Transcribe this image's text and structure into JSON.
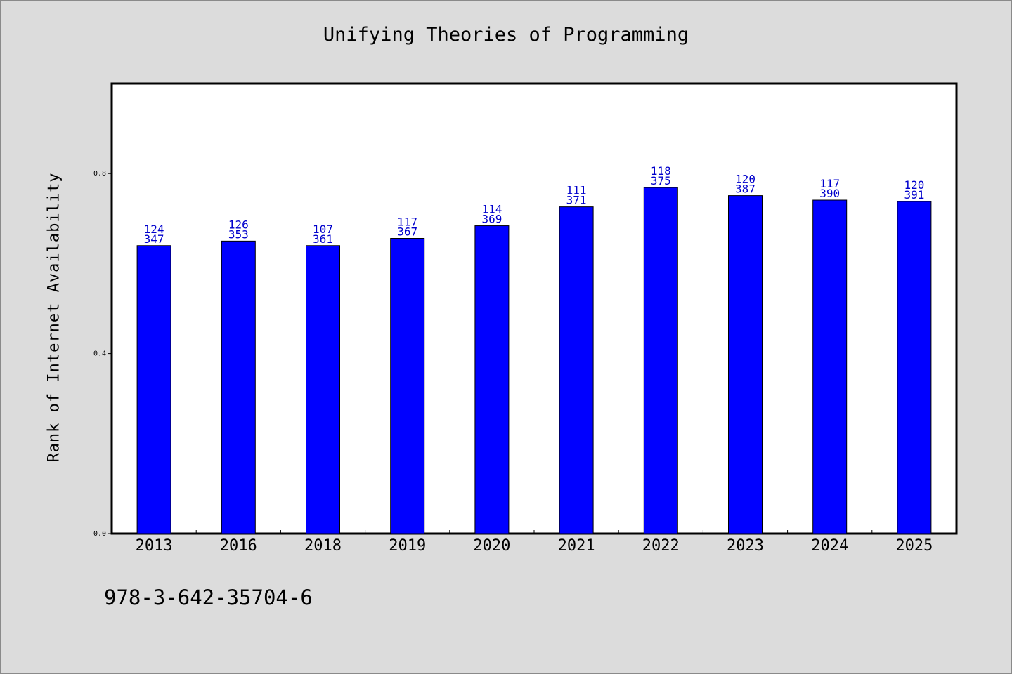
{
  "chart_data": {
    "type": "bar",
    "title": "Unifying Theories of Programming",
    "ylabel": "Rank of Internet Availability",
    "xlabel": "",
    "ylim": [
      0,
      1.0
    ],
    "yticks": [
      0.0,
      0.4,
      0.8
    ],
    "ytick_labels": [
      "0.0",
      "0.4",
      "0.8"
    ],
    "categories": [
      "2013",
      "2016",
      "2018",
      "2019",
      "2020",
      "2021",
      "2022",
      "2023",
      "2024",
      "2025"
    ],
    "values": [
      0.64,
      0.65,
      0.64,
      0.656,
      0.684,
      0.726,
      0.769,
      0.751,
      0.741,
      0.738
    ],
    "labels_top": [
      "124",
      "126",
      "107",
      "117",
      "114",
      "111",
      "118",
      "120",
      "117",
      "120"
    ],
    "labels_bottom": [
      "347",
      "353",
      "361",
      "367",
      "369",
      "371",
      "375",
      "387",
      "390",
      "391"
    ],
    "bar_color": "#0000ff",
    "label_color": "#0000cc",
    "grid": false,
    "legend": "none"
  },
  "footer": {
    "isbn": "978-3-642-35704-6"
  }
}
